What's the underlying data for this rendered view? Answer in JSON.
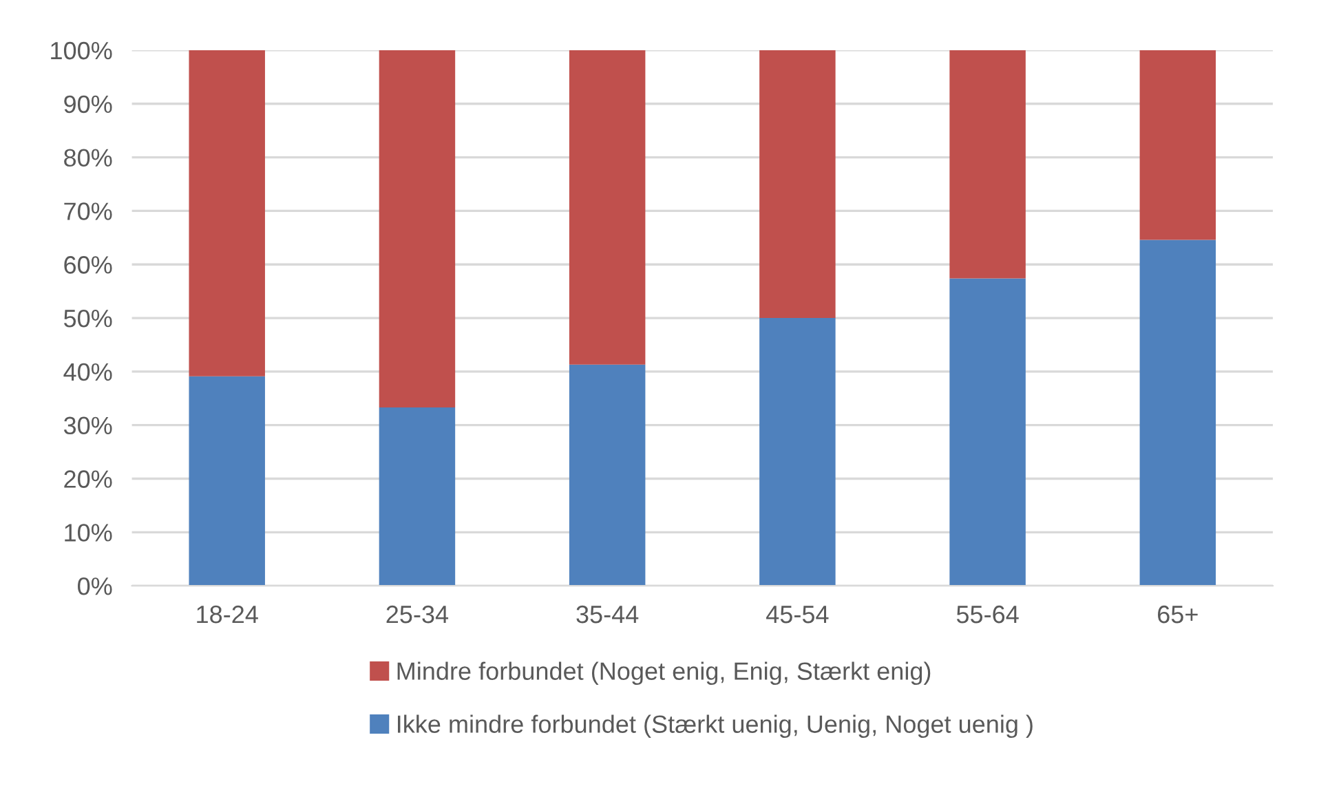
{
  "chart_data": {
    "type": "bar",
    "stacked": true,
    "categories": [
      "18-24",
      "25-34",
      "35-44",
      "45-54",
      "55-64",
      "65+"
    ],
    "series": [
      {
        "name": "Ikke mindre forbundet (Stærkt uenig, Uenig, Noget uenig )",
        "color": "#4f81bd",
        "values": [
          39.1,
          33.3,
          41.3,
          50.0,
          57.4,
          64.6
        ]
      },
      {
        "name": "Mindre forbundet (Noget enig, Enig, Stærkt enig)",
        "color": "#c0504d",
        "values": [
          60.9,
          66.7,
          58.7,
          50.0,
          42.6,
          35.4
        ]
      }
    ],
    "ylim": [
      0,
      100
    ],
    "yticks": [
      {
        "value": 0,
        "label": "0%"
      },
      {
        "value": 10,
        "label": "10%"
      },
      {
        "value": 20,
        "label": "20%"
      },
      {
        "value": 30,
        "label": "30%"
      },
      {
        "value": 40,
        "label": "40%"
      },
      {
        "value": 50,
        "label": "50%"
      },
      {
        "value": 60,
        "label": "60%"
      },
      {
        "value": 70,
        "label": "70%"
      },
      {
        "value": 80,
        "label": "80%"
      },
      {
        "value": 90,
        "label": "90%"
      },
      {
        "value": 100,
        "label": "100%"
      }
    ],
    "grid": "y",
    "legend": "bottom"
  }
}
